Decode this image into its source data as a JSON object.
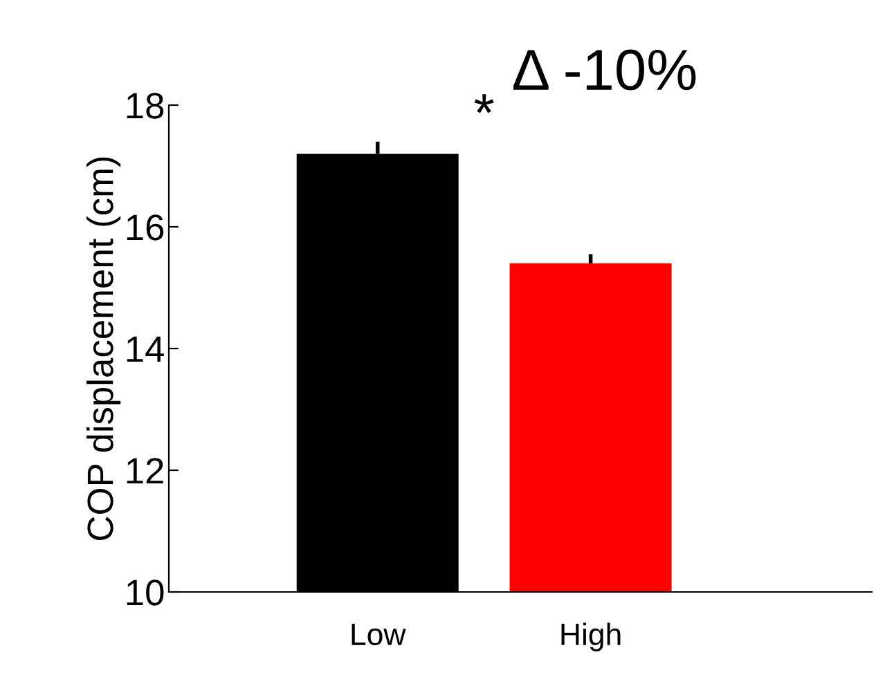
{
  "chart_data": {
    "type": "bar",
    "title": "Δ -10%",
    "ylabel": "COP displacement (cm)",
    "categories": [
      "Low",
      "High"
    ],
    "values": [
      17.2,
      15.4
    ],
    "errors": [
      0.2,
      0.15
    ],
    "colors": [
      "#000000",
      "#ff0000"
    ],
    "ylim": [
      10,
      18
    ],
    "yticks": [
      10,
      12,
      14,
      16,
      18
    ],
    "annotations": [
      "*"
    ],
    "grid": false,
    "legend": false
  }
}
